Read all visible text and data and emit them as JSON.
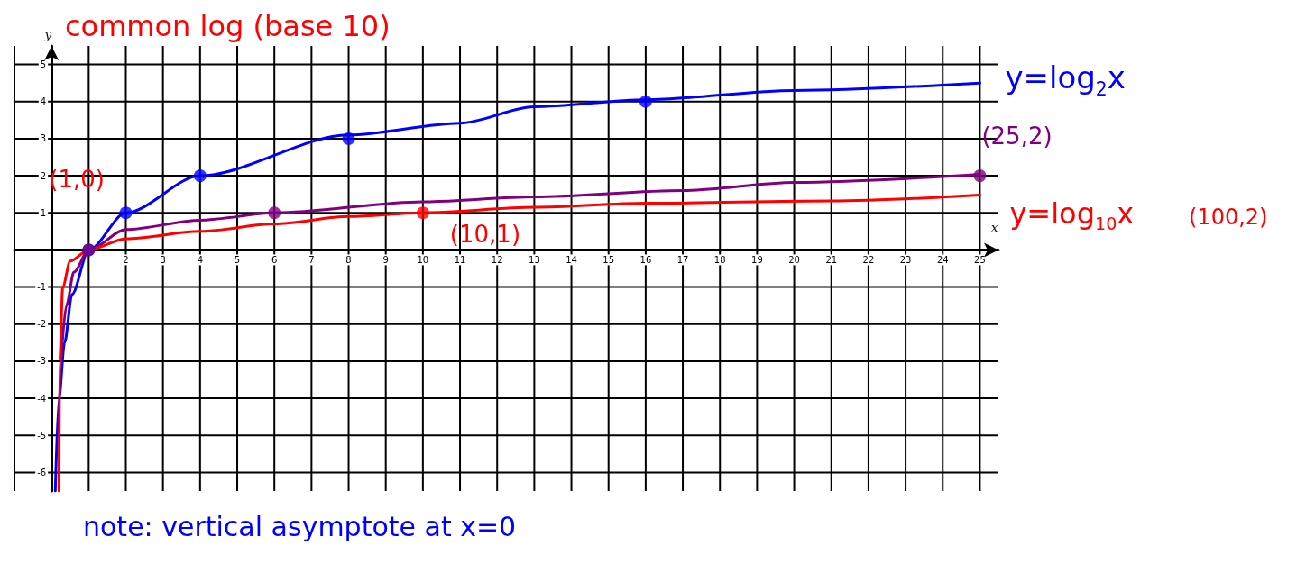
{
  "chart_data": {
    "type": "line",
    "xlabel": "x",
    "ylabel": "y",
    "xlim": [
      -1,
      25.5
    ],
    "ylim": [
      -6.5,
      5.5
    ],
    "xticks": [
      {
        "value": -1,
        "label": null
      },
      {
        "value": 0,
        "label": null
      },
      {
        "value": 1,
        "label": null
      },
      2,
      3,
      4,
      5,
      6,
      7,
      8,
      9,
      10,
      11,
      12,
      13,
      14,
      15,
      16,
      17,
      18,
      19,
      20,
      21,
      22,
      23,
      24,
      25
    ],
    "yticks": [
      -6,
      -5,
      -4,
      -3,
      -2,
      -1,
      1,
      2,
      3,
      4,
      5
    ],
    "grid": true,
    "marker": "none",
    "line_style": "solid",
    "series": [
      {
        "color": "#0000ff",
        "x": [
          0.1,
          0.2,
          0.35,
          0.55,
          1,
          2,
          4,
          8,
          11,
          13,
          16,
          20,
          25
        ],
        "values": [
          -6.5,
          -4,
          -2.5,
          -1.2,
          0,
          1,
          2,
          3.1,
          3.42,
          3.86,
          4.05,
          4.3,
          4.5
        ]
      },
      {
        "color": "#800080",
        "x": [
          0.25,
          0.4,
          0.6,
          1,
          2,
          4,
          6,
          10,
          13,
          17,
          20,
          25
        ],
        "values": [
          -3,
          -1.5,
          -0.6,
          0,
          0.55,
          0.8,
          1,
          1.3,
          1.43,
          1.6,
          1.82,
          2.04
        ]
      },
      {
        "color": "#ff0000",
        "x": [
          0.2,
          0.22,
          0.3,
          0.5,
          1,
          2,
          4,
          6,
          8,
          10,
          13,
          16,
          21,
          25
        ],
        "values": [
          -6.5,
          -3,
          -1,
          -0.3,
          0,
          0.3,
          0.5,
          0.7,
          0.9,
          1,
          1.15,
          1.26,
          1.32,
          1.48
        ]
      },
      {
        "type": "scatter",
        "marker": "circle",
        "color": "#0000ff",
        "x": [
          1,
          2,
          4,
          8,
          16
        ],
        "values": [
          0,
          1,
          2,
          3,
          4
        ]
      },
      {
        "type": "scatter",
        "marker": "circle",
        "color": "#800080",
        "x": [
          1,
          6,
          25
        ],
        "values": [
          0,
          1,
          2
        ]
      },
      {
        "type": "scatter",
        "marker": "circle",
        "color": "#ff0000",
        "x": [
          10
        ],
        "values": [
          1
        ]
      }
    ],
    "annotations": [
      "common log (base 10)",
      {
        "text": "y=log$_{2}$x",
        "x": 25,
        "y": 4.5
      },
      {
        "text": "(25,2)",
        "x": 25,
        "y": 2
      },
      {
        "text": "(1,0)",
        "x": 1,
        "y": 0
      },
      {
        "text": "(10,1)",
        "x": 10,
        "y": 1
      },
      {
        "text": "y=log$_{10}$x",
        "x": 25,
        "y": 1.48
      },
      "(100,2)",
      "note: vertical asymptote at x=0"
    ]
  }
}
